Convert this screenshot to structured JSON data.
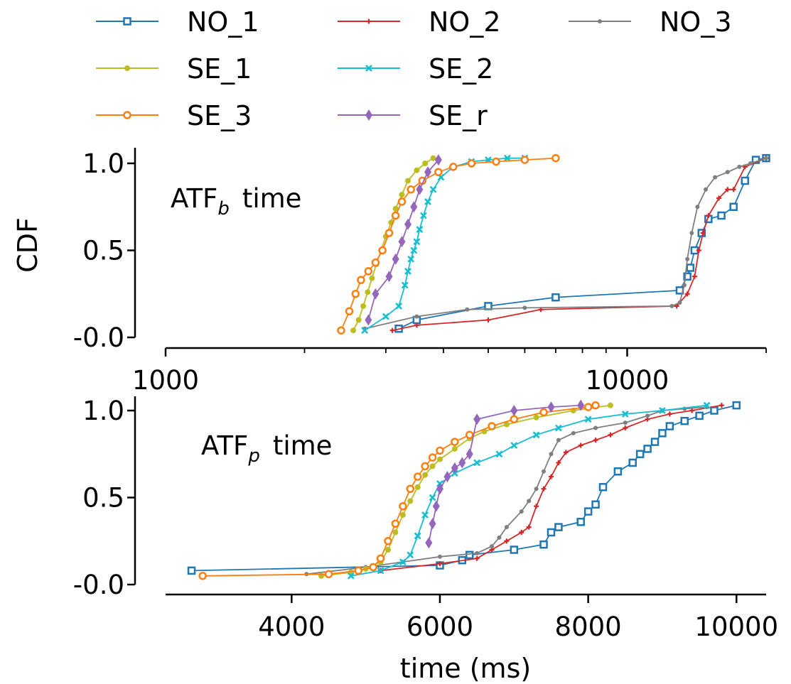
{
  "legend": {
    "placement": "top, above plots",
    "entries": [
      {
        "label": "NO_1",
        "color": "#1f77b4",
        "marker": "square"
      },
      {
        "label": "SE_1",
        "color": "#bcbd22",
        "marker": "circle"
      },
      {
        "label": "SE_3",
        "color": "#ff7f0e",
        "marker": "circle-open"
      },
      {
        "label": "NO_2",
        "color": "#d62728",
        "marker": "plus"
      },
      {
        "label": "SE_2",
        "color": "#17becf",
        "marker": "x"
      },
      {
        "label": "SE_r",
        "color": "#9467bd",
        "marker": "diamond"
      },
      {
        "label": "NO_3",
        "color": "#7f7f7f",
        "marker": "dot"
      }
    ]
  },
  "y_axis_label": "CDF",
  "x_axis_label": "time (ms)",
  "chart_data": [
    {
      "type": "line",
      "annotation": {
        "base": "ATF",
        "sub": "b",
        "rest": "time"
      },
      "xscale": "log",
      "xlim": [
        1000,
        20000
      ],
      "ylim": [
        0,
        1.08
      ],
      "x_ticks": [
        1000,
        10000
      ],
      "x_tick_labels": [
        "1000",
        "10000"
      ],
      "y_ticks": [
        0.0,
        0.5,
        1.0
      ],
      "y_tick_labels": [
        "-0.0",
        "0.5",
        "1.0"
      ],
      "grid": false,
      "series": [
        {
          "name": "NO_1",
          "x": [
            3200,
            3500,
            5000,
            7000,
            13000,
            13500,
            13700,
            14000,
            14500,
            15000,
            16000,
            17000,
            18000,
            19000,
            20000
          ],
          "y": [
            0.05,
            0.1,
            0.18,
            0.23,
            0.27,
            0.35,
            0.4,
            0.5,
            0.6,
            0.68,
            0.7,
            0.75,
            0.9,
            1.02,
            1.03
          ]
        },
        {
          "name": "NO_2",
          "x": [
            3100,
            3500,
            5000,
            6500,
            12800,
            13500,
            14000,
            14300,
            14600,
            15000,
            15800,
            16500,
            17000,
            18000,
            20000
          ],
          "y": [
            0.04,
            0.07,
            0.1,
            0.16,
            0.18,
            0.25,
            0.35,
            0.5,
            0.6,
            0.7,
            0.8,
            0.85,
            0.85,
            0.98,
            1.03
          ]
        },
        {
          "name": "NO_3",
          "x": [
            2700,
            3500,
            4500,
            6000,
            12500,
            13000,
            13300,
            13500,
            13800,
            14200,
            14800,
            15500,
            16500,
            17500,
            18500,
            20000
          ],
          "y": [
            0.05,
            0.12,
            0.16,
            0.17,
            0.18,
            0.2,
            0.3,
            0.45,
            0.6,
            0.75,
            0.85,
            0.92,
            0.95,
            0.98,
            1.0,
            1.03
          ]
        },
        {
          "name": "SE_1",
          "x": [
            2550,
            2620,
            2680,
            2740,
            2800,
            2860,
            2930,
            3000,
            3080,
            3150,
            3250,
            3350,
            3500,
            3650,
            3800
          ],
          "y": [
            0.04,
            0.1,
            0.18,
            0.26,
            0.34,
            0.42,
            0.5,
            0.58,
            0.66,
            0.74,
            0.82,
            0.9,
            0.96,
            1.0,
            1.03
          ]
        },
        {
          "name": "SE_2",
          "x": [
            2700,
            3000,
            3200,
            3300,
            3350,
            3400,
            3450,
            3500,
            3550,
            3620,
            3700,
            3800,
            3950,
            4200,
            4600,
            5000,
            5500,
            6000
          ],
          "y": [
            0.04,
            0.12,
            0.18,
            0.3,
            0.38,
            0.45,
            0.5,
            0.55,
            0.62,
            0.7,
            0.78,
            0.85,
            0.92,
            0.98,
            1.01,
            1.02,
            1.03,
            1.03
          ]
        },
        {
          "name": "SE_3",
          "x": [
            2400,
            2500,
            2580,
            2650,
            2750,
            2850,
            2950,
            3050,
            3150,
            3250,
            3400,
            3600,
            3900,
            4200,
            4600,
            5200,
            6000,
            7000
          ],
          "y": [
            0.04,
            0.15,
            0.25,
            0.33,
            0.38,
            0.43,
            0.5,
            0.6,
            0.7,
            0.78,
            0.85,
            0.9,
            0.95,
            0.98,
            1.0,
            1.01,
            1.02,
            1.03
          ]
        },
        {
          "name": "SE_r",
          "x": [
            2750,
            2850,
            3050,
            3150,
            3250,
            3350,
            3450,
            3550,
            3700,
            3900
          ],
          "y": [
            0.1,
            0.25,
            0.35,
            0.45,
            0.55,
            0.65,
            0.75,
            0.85,
            0.95,
            1.02
          ]
        }
      ]
    },
    {
      "type": "line",
      "annotation": {
        "base": "ATF",
        "sub": "p",
        "rest": "time"
      },
      "xscale": "linear",
      "xlim": [
        2300,
        10400
      ],
      "ylim": [
        0,
        1.08
      ],
      "x_ticks": [
        4000,
        6000,
        8000,
        10000
      ],
      "x_tick_labels": [
        "4000",
        "6000",
        "8000",
        "10000"
      ],
      "y_ticks": [
        0.0,
        0.5,
        1.0
      ],
      "y_tick_labels": [
        "-0.0",
        "0.5",
        "1.0"
      ],
      "grid": false,
      "series": [
        {
          "name": "NO_1",
          "x": [
            2650,
            6000,
            6300,
            6400,
            7000,
            7400,
            7500,
            7600,
            7900,
            8000,
            8100,
            8200,
            8400,
            8600,
            8700,
            8800,
            8900,
            9000,
            9100,
            9300,
            9500,
            9700,
            10000
          ],
          "y": [
            0.08,
            0.11,
            0.14,
            0.17,
            0.2,
            0.23,
            0.3,
            0.33,
            0.36,
            0.42,
            0.46,
            0.56,
            0.65,
            0.7,
            0.75,
            0.78,
            0.82,
            0.87,
            0.91,
            0.94,
            0.97,
            1.0,
            1.03
          ]
        },
        {
          "name": "NO_2",
          "x": [
            5200,
            6000,
            6500,
            6700,
            6900,
            7100,
            7200,
            7300,
            7400,
            7500,
            7600,
            7700,
            7900,
            8100,
            8300,
            8500,
            8800,
            9100,
            9400,
            9800
          ],
          "y": [
            0.08,
            0.12,
            0.15,
            0.2,
            0.25,
            0.3,
            0.33,
            0.45,
            0.55,
            0.62,
            0.7,
            0.76,
            0.8,
            0.83,
            0.86,
            0.9,
            0.95,
            0.98,
            1.0,
            1.03
          ]
        },
        {
          "name": "NO_3",
          "x": [
            4200,
            5000,
            5500,
            6000,
            6500,
            6700,
            6800,
            6900,
            7100,
            7200,
            7300,
            7400,
            7500,
            7600,
            7800,
            8100,
            8500,
            8800,
            9000,
            9300,
            9600
          ],
          "y": [
            0.06,
            0.1,
            0.13,
            0.16,
            0.18,
            0.22,
            0.27,
            0.33,
            0.42,
            0.48,
            0.55,
            0.65,
            0.75,
            0.83,
            0.87,
            0.9,
            0.93,
            0.97,
            1.0,
            1.01,
            1.02
          ]
        },
        {
          "name": "SE_1",
          "x": [
            4400,
            4800,
            5000,
            5200,
            5300,
            5400,
            5500,
            5600,
            5700,
            5800,
            5900,
            6000,
            6200,
            6400,
            6600,
            6900,
            7300,
            7800,
            8300
          ],
          "y": [
            0.05,
            0.07,
            0.09,
            0.13,
            0.2,
            0.3,
            0.4,
            0.48,
            0.56,
            0.63,
            0.68,
            0.72,
            0.78,
            0.84,
            0.88,
            0.92,
            0.96,
            1.0,
            1.03
          ]
        },
        {
          "name": "SE_2",
          "x": [
            4800,
            5200,
            5500,
            5600,
            5700,
            5800,
            5900,
            6000,
            6200,
            6500,
            6800,
            7000,
            7300,
            7600,
            8000,
            8500,
            9000,
            9600
          ],
          "y": [
            0.05,
            0.08,
            0.13,
            0.17,
            0.28,
            0.4,
            0.5,
            0.58,
            0.64,
            0.7,
            0.75,
            0.8,
            0.86,
            0.9,
            0.95,
            0.98,
            1.0,
            1.03
          ]
        },
        {
          "name": "SE_3",
          "x": [
            2800,
            4500,
            4900,
            5100,
            5200,
            5300,
            5400,
            5500,
            5600,
            5700,
            5800,
            5900,
            6000,
            6200,
            6400,
            6700,
            7000,
            7400,
            8000,
            8100
          ],
          "y": [
            0.05,
            0.06,
            0.08,
            0.1,
            0.15,
            0.25,
            0.35,
            0.45,
            0.55,
            0.62,
            0.68,
            0.73,
            0.77,
            0.82,
            0.86,
            0.91,
            0.95,
            0.99,
            1.02,
            1.03
          ]
        },
        {
          "name": "SE_r",
          "x": [
            5850,
            5900,
            5950,
            6000,
            6100,
            6200,
            6300,
            6400,
            6500,
            7000,
            7500,
            7900
          ],
          "y": [
            0.24,
            0.35,
            0.45,
            0.55,
            0.62,
            0.67,
            0.7,
            0.75,
            0.95,
            1.0,
            1.02,
            1.03
          ]
        }
      ]
    }
  ]
}
